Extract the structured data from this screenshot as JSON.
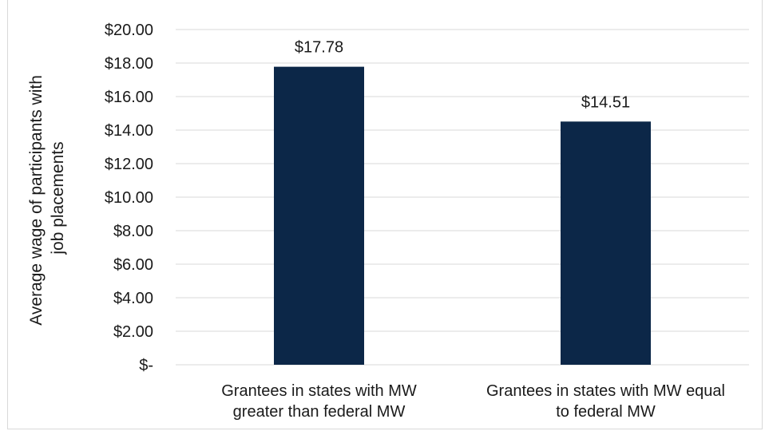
{
  "chart_data": {
    "type": "bar",
    "categories": [
      [
        "Grantees in states with MW",
        "greater than federal MW"
      ],
      [
        "Grantees in states with MW equal",
        "to federal MW"
      ]
    ],
    "values": [
      17.78,
      14.51
    ],
    "data_labels": [
      "$17.78",
      "$14.51"
    ],
    "y_ticks": [
      "$-",
      "$2.00",
      "$4.00",
      "$6.00",
      "$8.00",
      "$10.00",
      "$12.00",
      "$14.00",
      "$16.00",
      "$18.00",
      "$20.00"
    ],
    "ylabel_lines": [
      "Average wage of participants with",
      "job placements"
    ],
    "xlabel": "",
    "ylim": [
      0,
      20
    ],
    "grid": true,
    "legend": "none",
    "bar_color": "#0c2748",
    "grid_color": "#d9d9d9"
  }
}
